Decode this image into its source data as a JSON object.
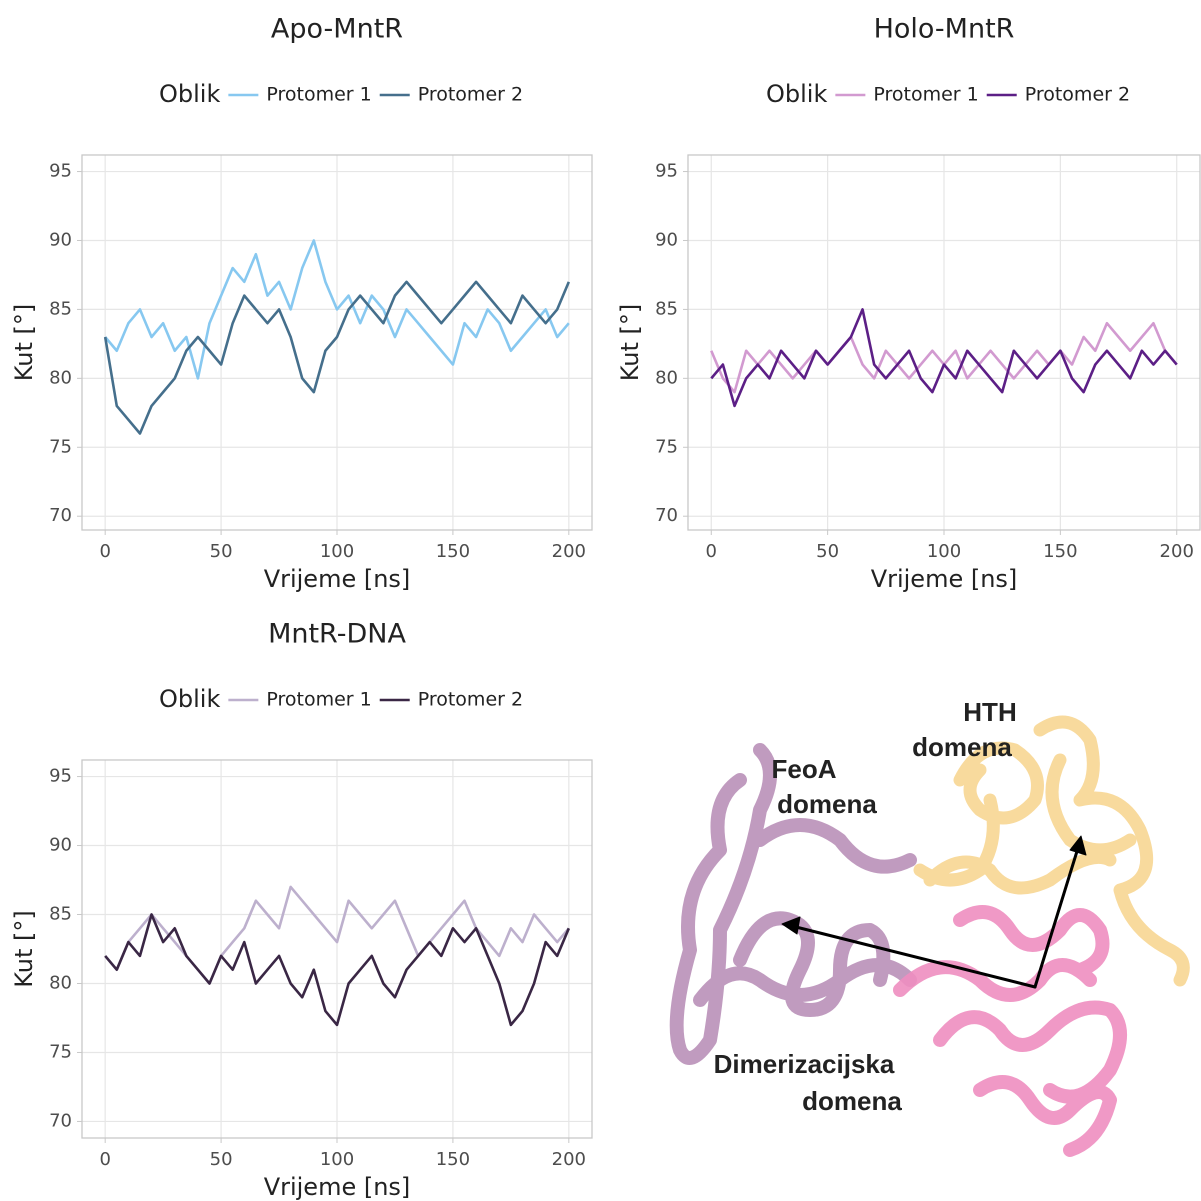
{
  "chart_data": [
    {
      "type": "line",
      "title": "Apo-MntR",
      "xlabel": "Vrijeme [ns]",
      "ylabel": "Kut [°]",
      "legend_title": "Oblik",
      "x": [
        0,
        5,
        10,
        15,
        20,
        25,
        30,
        35,
        40,
        45,
        50,
        55,
        60,
        65,
        70,
        75,
        80,
        85,
        90,
        95,
        100,
        105,
        110,
        115,
        120,
        125,
        130,
        135,
        140,
        145,
        150,
        155,
        160,
        165,
        170,
        175,
        180,
        185,
        190,
        195,
        200
      ],
      "xlim": [
        -10,
        210
      ],
      "ylim": [
        69,
        96.2
      ],
      "xticks": [
        0,
        50,
        100,
        150,
        200
      ],
      "yticks": [
        70,
        75,
        80,
        85,
        90,
        95
      ],
      "grid": true,
      "series": [
        {
          "name": "Protomer 1",
          "color": "#87c8f0",
          "values": [
            83,
            82,
            84,
            85,
            83,
            84,
            82,
            83,
            80,
            84,
            86,
            88,
            87,
            89,
            86,
            87,
            85,
            88,
            90,
            87,
            85,
            86,
            84,
            86,
            85,
            83,
            85,
            84,
            83,
            82,
            81,
            84,
            83,
            85,
            84,
            82,
            83,
            84,
            85,
            83,
            84
          ]
        },
        {
          "name": "Protomer 2",
          "color": "#456f8c",
          "values": [
            83,
            78,
            77,
            76,
            78,
            79,
            80,
            82,
            83,
            82,
            81,
            84,
            86,
            85,
            84,
            85,
            83,
            80,
            79,
            82,
            83,
            85,
            86,
            85,
            84,
            86,
            87,
            86,
            85,
            84,
            85,
            86,
            87,
            86,
            85,
            84,
            86,
            85,
            84,
            85,
            87
          ]
        }
      ]
    },
    {
      "type": "line",
      "title": "Holo-MntR",
      "xlabel": "Vrijeme [ns]",
      "ylabel": "Kut [°]",
      "legend_title": "Oblik",
      "x": [
        0,
        5,
        10,
        15,
        20,
        25,
        30,
        35,
        40,
        45,
        50,
        55,
        60,
        65,
        70,
        75,
        80,
        85,
        90,
        95,
        100,
        105,
        110,
        115,
        120,
        125,
        130,
        135,
        140,
        145,
        150,
        155,
        160,
        165,
        170,
        175,
        180,
        185,
        190,
        195,
        200
      ],
      "xlim": [
        -10,
        210
      ],
      "ylim": [
        69,
        96.2
      ],
      "xticks": [
        0,
        50,
        100,
        150,
        200
      ],
      "yticks": [
        70,
        75,
        80,
        85,
        90,
        95
      ],
      "grid": true,
      "series": [
        {
          "name": "Protomer 1",
          "color": "#d29ad0",
          "values": [
            82,
            80,
            79,
            82,
            81,
            82,
            81,
            80,
            81,
            82,
            81,
            82,
            83,
            81,
            80,
            82,
            81,
            80,
            81,
            82,
            81,
            82,
            80,
            81,
            82,
            81,
            80,
            81,
            82,
            81,
            82,
            81,
            83,
            82,
            84,
            83,
            82,
            83,
            84,
            82,
            81
          ]
        },
        {
          "name": "Protomer 2",
          "color": "#5c1f86",
          "values": [
            80,
            81,
            78,
            80,
            81,
            80,
            82,
            81,
            80,
            82,
            81,
            82,
            83,
            85,
            81,
            80,
            81,
            82,
            80,
            79,
            81,
            80,
            82,
            81,
            80,
            79,
            82,
            81,
            80,
            81,
            82,
            80,
            79,
            81,
            82,
            81,
            80,
            82,
            81,
            82,
            81
          ]
        }
      ]
    },
    {
      "type": "line",
      "title": "MntR-DNA",
      "xlabel": "Vrijeme [ns]",
      "ylabel": "Kut [°]",
      "legend_title": "Oblik",
      "x": [
        0,
        5,
        10,
        15,
        20,
        25,
        30,
        35,
        40,
        45,
        50,
        55,
        60,
        65,
        70,
        75,
        80,
        85,
        90,
        95,
        100,
        105,
        110,
        115,
        120,
        125,
        130,
        135,
        140,
        145,
        150,
        155,
        160,
        165,
        170,
        175,
        180,
        185,
        190,
        195,
        200
      ],
      "xlim": [
        -10,
        210
      ],
      "ylim": [
        68.8,
        96.2
      ],
      "xticks": [
        0,
        50,
        100,
        150,
        200
      ],
      "yticks": [
        70,
        75,
        80,
        85,
        90,
        95
      ],
      "grid": true,
      "series": [
        {
          "name": "Protomer 1",
          "color": "#bdb0cd",
          "values": [
            82,
            81,
            83,
            84,
            85,
            84,
            83,
            82,
            81,
            80,
            82,
            83,
            84,
            86,
            85,
            84,
            87,
            86,
            85,
            84,
            83,
            86,
            85,
            84,
            85,
            86,
            84,
            82,
            83,
            84,
            85,
            86,
            84,
            83,
            82,
            84,
            83,
            85,
            84,
            83,
            84
          ]
        },
        {
          "name": "Protomer 2",
          "color": "#3a2745",
          "values": [
            82,
            81,
            83,
            82,
            85,
            83,
            84,
            82,
            81,
            80,
            82,
            81,
            83,
            80,
            81,
            82,
            80,
            79,
            81,
            78,
            77,
            80,
            81,
            82,
            80,
            79,
            81,
            82,
            83,
            82,
            84,
            83,
            84,
            82,
            80,
            77,
            78,
            80,
            83,
            82,
            84
          ]
        }
      ]
    }
  ],
  "illustration": {
    "labels": [
      {
        "lines": [
          "HTH",
          "domena"
        ],
        "color": "#f0b545"
      },
      {
        "lines": [
          "FeoA",
          "domena"
        ],
        "color": "#5e2470"
      },
      {
        "lines": [
          "Dimerizacijska",
          "domena"
        ],
        "color": "#ee5aa8"
      }
    ]
  }
}
